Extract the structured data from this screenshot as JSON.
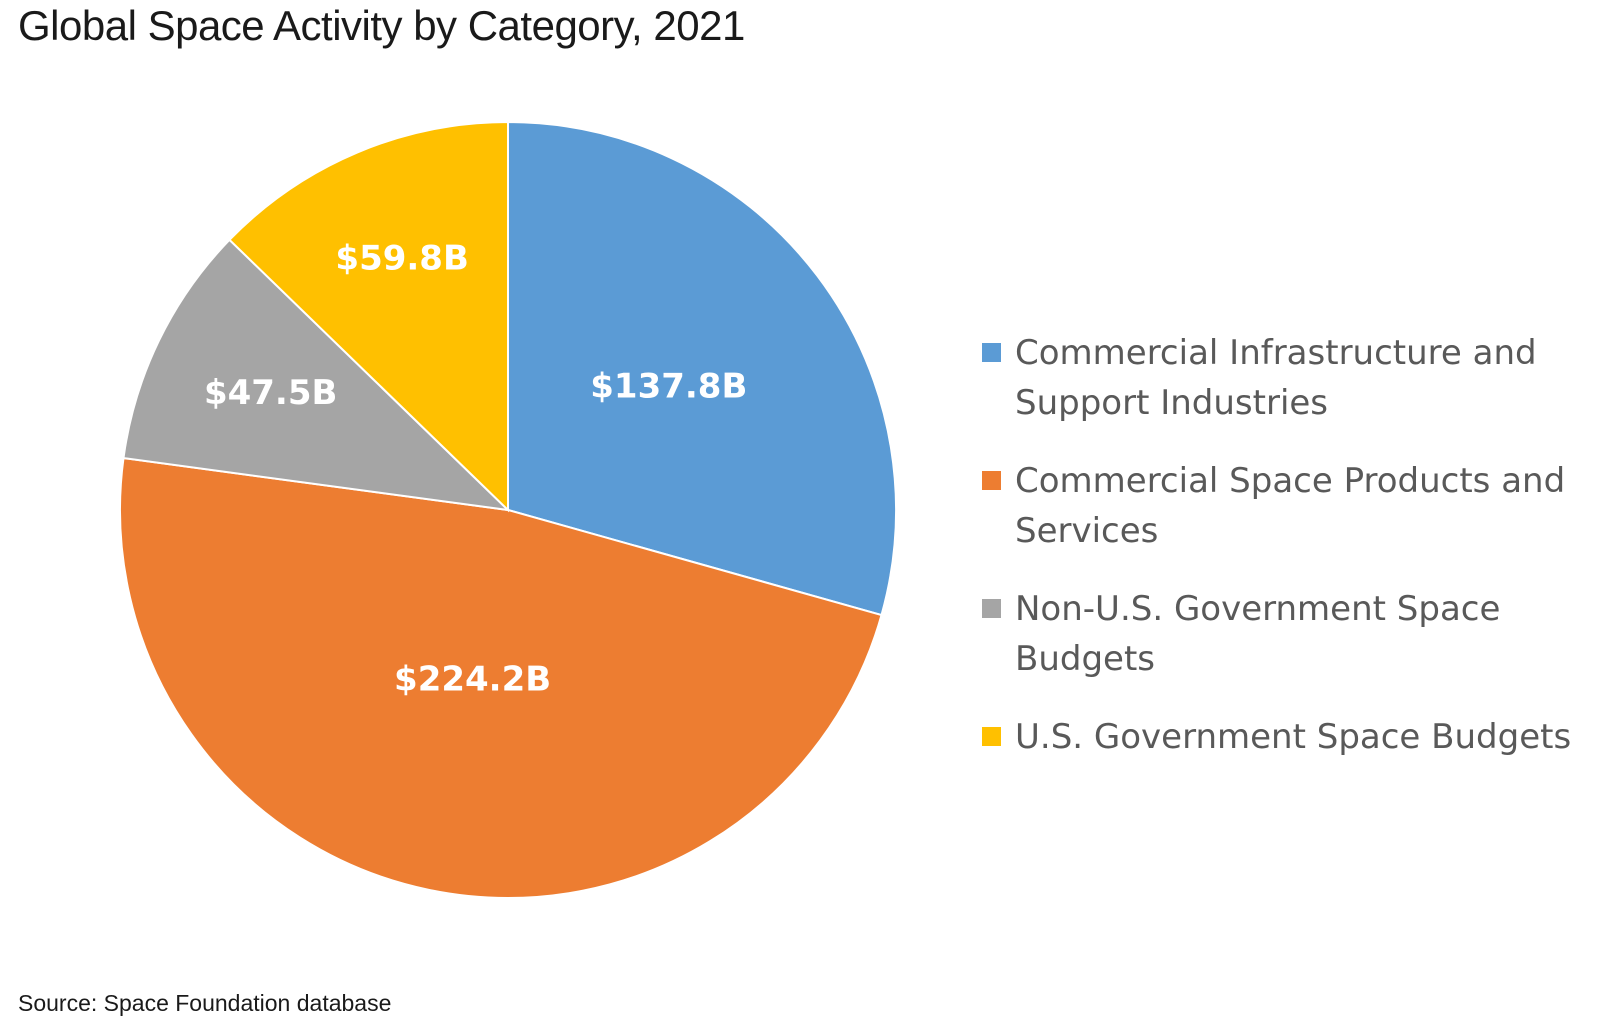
{
  "chart_data": {
    "type": "pie",
    "title": "Global Space Activity by Category, 2021",
    "source": "Source: Space Foundation database",
    "slices": [
      {
        "label": "Commercial Infrastructure and Support Industries",
        "value": 137.8,
        "display": "$137.8B",
        "color": "#5b9bd5"
      },
      {
        "label": "Commercial Space Products and Services",
        "value": 224.2,
        "display": "$224.2B",
        "color": "#ed7d31"
      },
      {
        "label": "Non-U.S. Government Space Budgets",
        "value": 47.5,
        "display": "$47.5B",
        "color": "#a5a5a5"
      },
      {
        "label": "U.S. Government Space Budgets",
        "value": 59.8,
        "display": "$59.8B",
        "color": "#ffc000"
      }
    ],
    "legend_position": "right",
    "start_angle": "12 o'clock",
    "direction": "clockwise"
  }
}
